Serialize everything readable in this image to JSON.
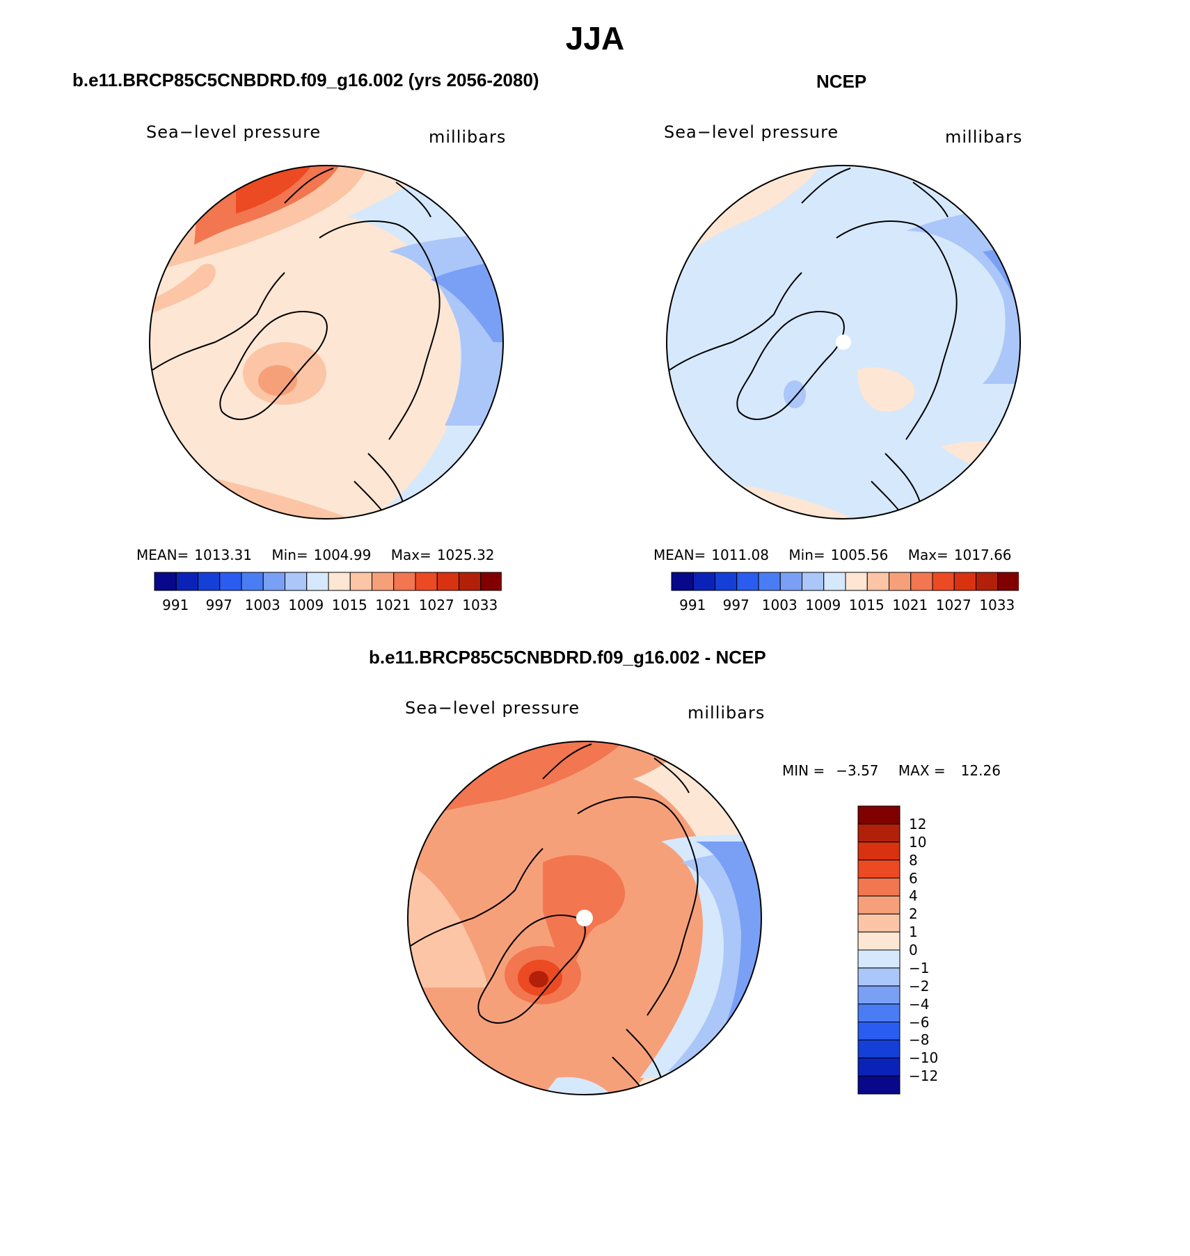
{
  "title": "JJA",
  "panels": [
    {
      "id": "model",
      "title": "b.e11.BRCP85C5CNBDRD.f09_g16.002 (yrs 2056-2080)",
      "left_label": "Sea−level pressure",
      "right_label": "millibars",
      "stats": {
        "mean_label": "MEAN=",
        "mean": "1013.31",
        "min_label": "Min=",
        "min": "1004.99",
        "max_label": "Max=",
        "max": "1025.32"
      }
    },
    {
      "id": "ncep",
      "title": "NCEP",
      "left_label": "Sea−level pressure",
      "right_label": "millibars",
      "stats": {
        "mean_label": "MEAN=",
        "mean": "1011.08",
        "min_label": "Min=",
        "min": "1005.56",
        "max_label": "Max=",
        "max": "1017.66"
      }
    },
    {
      "id": "diff",
      "title": "b.e11.BRCP85C5CNBDRD.f09_g16.002 - NCEP",
      "left_label": "Sea−level pressure",
      "right_label": "millibars",
      "stats": {
        "min_label": "MIN =",
        "min": "−3.57",
        "max_label": "MAX =",
        "max": "12.26"
      }
    }
  ],
  "colorbar_slp": {
    "colors": [
      "#08088a",
      "#0b22b8",
      "#1440d8",
      "#2a5cf0",
      "#4a7df4",
      "#7aa0f5",
      "#abc6f8",
      "#d6e8fb",
      "#fde6d4",
      "#fbc5a6",
      "#f6a07a",
      "#f27650",
      "#ec4a22",
      "#d83210",
      "#b2200a",
      "#800000"
    ],
    "labels": [
      "991",
      "997",
      "1003",
      "1009",
      "1015",
      "1021",
      "1027",
      "1033"
    ]
  },
  "colorbar_diff": {
    "colors": [
      "#08088a",
      "#0b22b8",
      "#1440d8",
      "#2a5cf0",
      "#4a7df4",
      "#7aa0f5",
      "#abc6f8",
      "#d6e8fb",
      "#fde6d4",
      "#fbc5a6",
      "#f6a07a",
      "#f27650",
      "#ec4a22",
      "#d83210",
      "#b2200a",
      "#800000"
    ],
    "labels": [
      "12",
      "10",
      "8",
      "6",
      "4",
      "2",
      "1",
      "0",
      "−1",
      "−2",
      "−4",
      "−6",
      "−8",
      "−10",
      "−12"
    ]
  },
  "map": {
    "projection": "north-polar-stereographic",
    "variable": "sea-level pressure",
    "unit": "millibars"
  }
}
